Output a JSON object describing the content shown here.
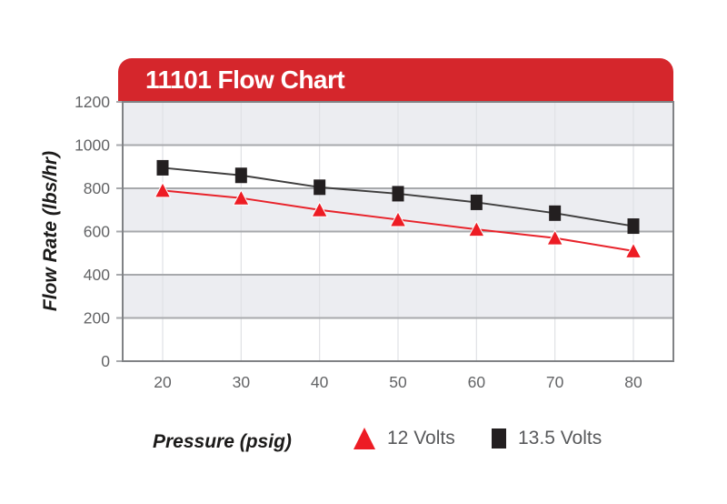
{
  "chart_data": {
    "type": "line",
    "title": "11101 Flow Chart",
    "xlabel": "Pressure (psig)",
    "ylabel": "Flow Rate (lbs/hr)",
    "x": [
      20,
      30,
      40,
      50,
      60,
      70,
      80
    ],
    "xticks": [
      20,
      30,
      40,
      50,
      60,
      70,
      80
    ],
    "yticks": [
      0,
      200,
      400,
      600,
      800,
      1000,
      1200
    ],
    "xlim": [
      20,
      80
    ],
    "ylim": [
      0,
      1200
    ],
    "grid": "horizontal-bands-alternating",
    "legend_position": "bottom",
    "series": [
      {
        "name": "12 Volts",
        "marker": "triangle",
        "color": "#ed1c24",
        "line_color": "#e8232b",
        "values": [
          790,
          755,
          700,
          655,
          610,
          570,
          510
        ]
      },
      {
        "name": "13.5 Volts",
        "marker": "square",
        "color": "#231f20",
        "line_color": "#3f3e3e",
        "values": [
          895,
          860,
          805,
          775,
          735,
          685,
          625
        ]
      }
    ]
  },
  "colors": {
    "header_red": "#d5262c",
    "band_gray": "#ecedf1",
    "band_white": "#ffffff",
    "h_gridline": "#a7a9ac",
    "v_gridline": "#e0e1e5",
    "plot_border": "#808285",
    "tick_text": "#636466",
    "legend_text": "#58595b"
  }
}
